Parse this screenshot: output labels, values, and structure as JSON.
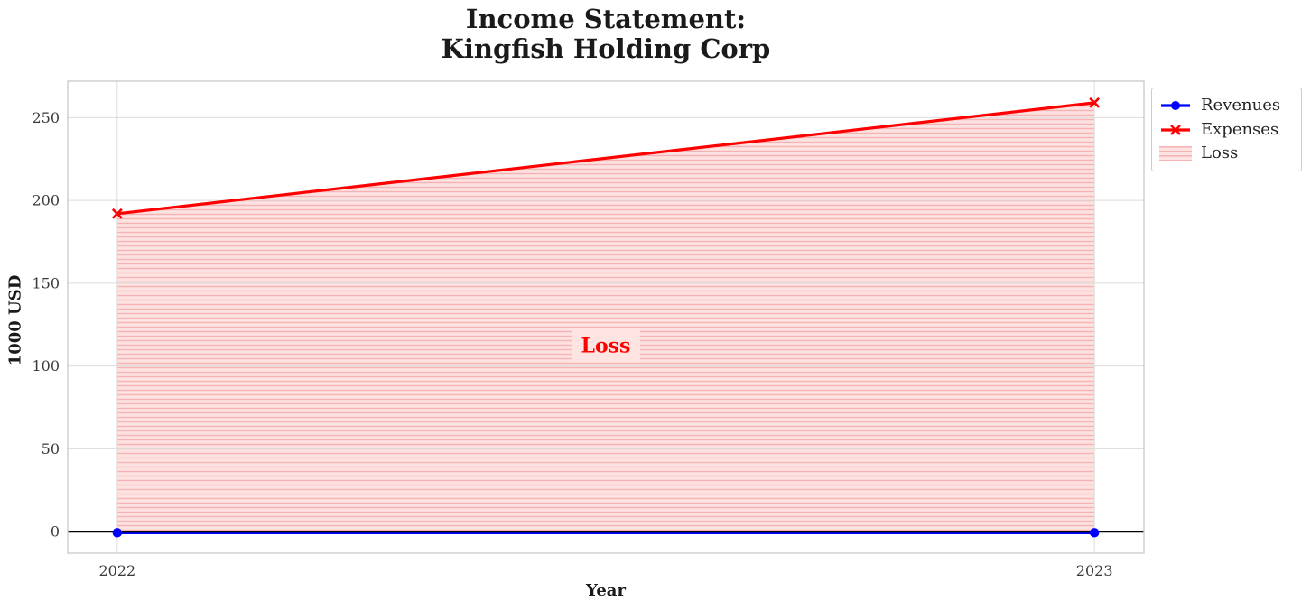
{
  "chart_data": {
    "type": "line",
    "title": "Income Statement:\nKingfish Holding Corp",
    "title_lines": [
      "Income Statement:",
      "Kingfish Holding Corp"
    ],
    "xlabel": "Year",
    "ylabel": "1000 USD",
    "categories": [
      "2022",
      "2023"
    ],
    "series": [
      {
        "name": "Revenues",
        "values": [
          0,
          0
        ],
        "color": "#0000ff",
        "marker": "circle"
      },
      {
        "name": "Expenses",
        "values": [
          192,
          259
        ],
        "color": "#ff0000",
        "marker": "x"
      }
    ],
    "fill_between": {
      "name": "Loss",
      "upper": "Expenses",
      "lower": "Revenues",
      "fill_color": "#fde2e2",
      "hatch_color": "#f6b3b3",
      "hatch": "horizontal-lines"
    },
    "annotation": {
      "text": "Loss",
      "color": "#ff0000",
      "bg_color": "#ffe4e1",
      "y": 112.6
    },
    "yticks": [
      "0",
      "50",
      "100",
      "150",
      "200",
      "250"
    ],
    "ytick_values": [
      0,
      50,
      100,
      150,
      200,
      250
    ],
    "ylim": [
      -13,
      272
    ],
    "zero_line": {
      "y": 0,
      "color": "#000000"
    },
    "grid": true,
    "legend": {
      "position": "outside upper right",
      "entries": [
        {
          "label": "Revenues",
          "swatch": "line-circle",
          "color": "#0000ff"
        },
        {
          "label": "Expenses",
          "swatch": "line-x",
          "color": "#ff0000"
        },
        {
          "label": "Loss",
          "swatch": "hatched-patch",
          "color": "#f6b3b3"
        }
      ]
    }
  },
  "style": {
    "background": "#ffffff",
    "text_color": "#1a1a1a",
    "tick_color": "#3a3a3a",
    "grid_color": "#dcdcdc",
    "border_color": "#cccccc"
  }
}
